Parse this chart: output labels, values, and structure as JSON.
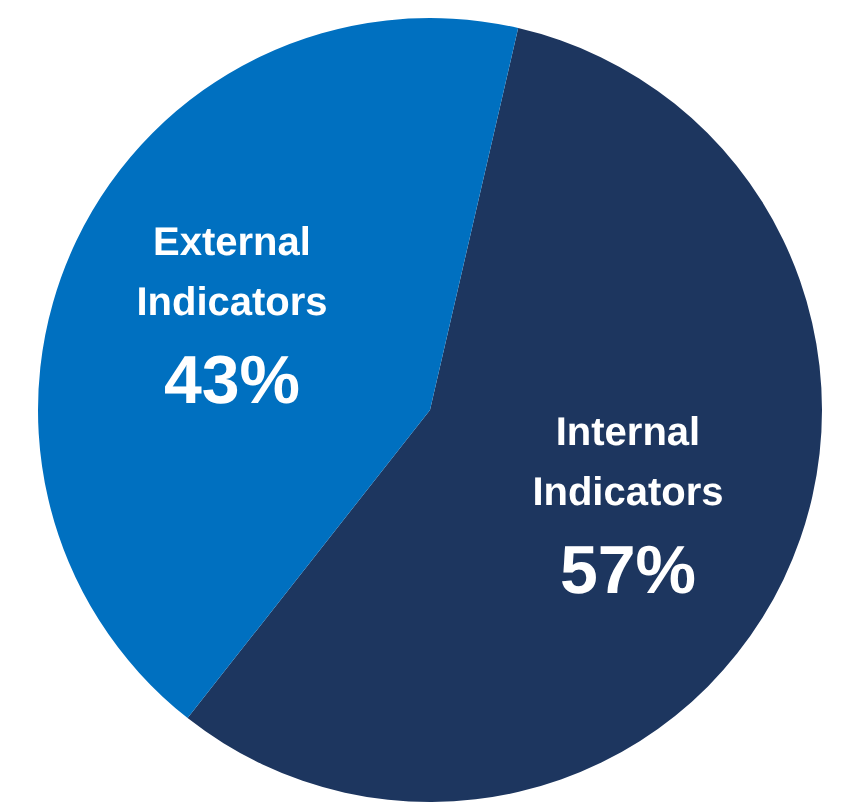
{
  "chart_data": {
    "type": "pie",
    "categories": [
      "Internal Indicators",
      "External Indicators"
    ],
    "values": [
      57,
      43
    ],
    "colors": [
      "#1d365f",
      "#0070c0"
    ],
    "value_labels": [
      "57%",
      "43%"
    ],
    "legend": false
  }
}
